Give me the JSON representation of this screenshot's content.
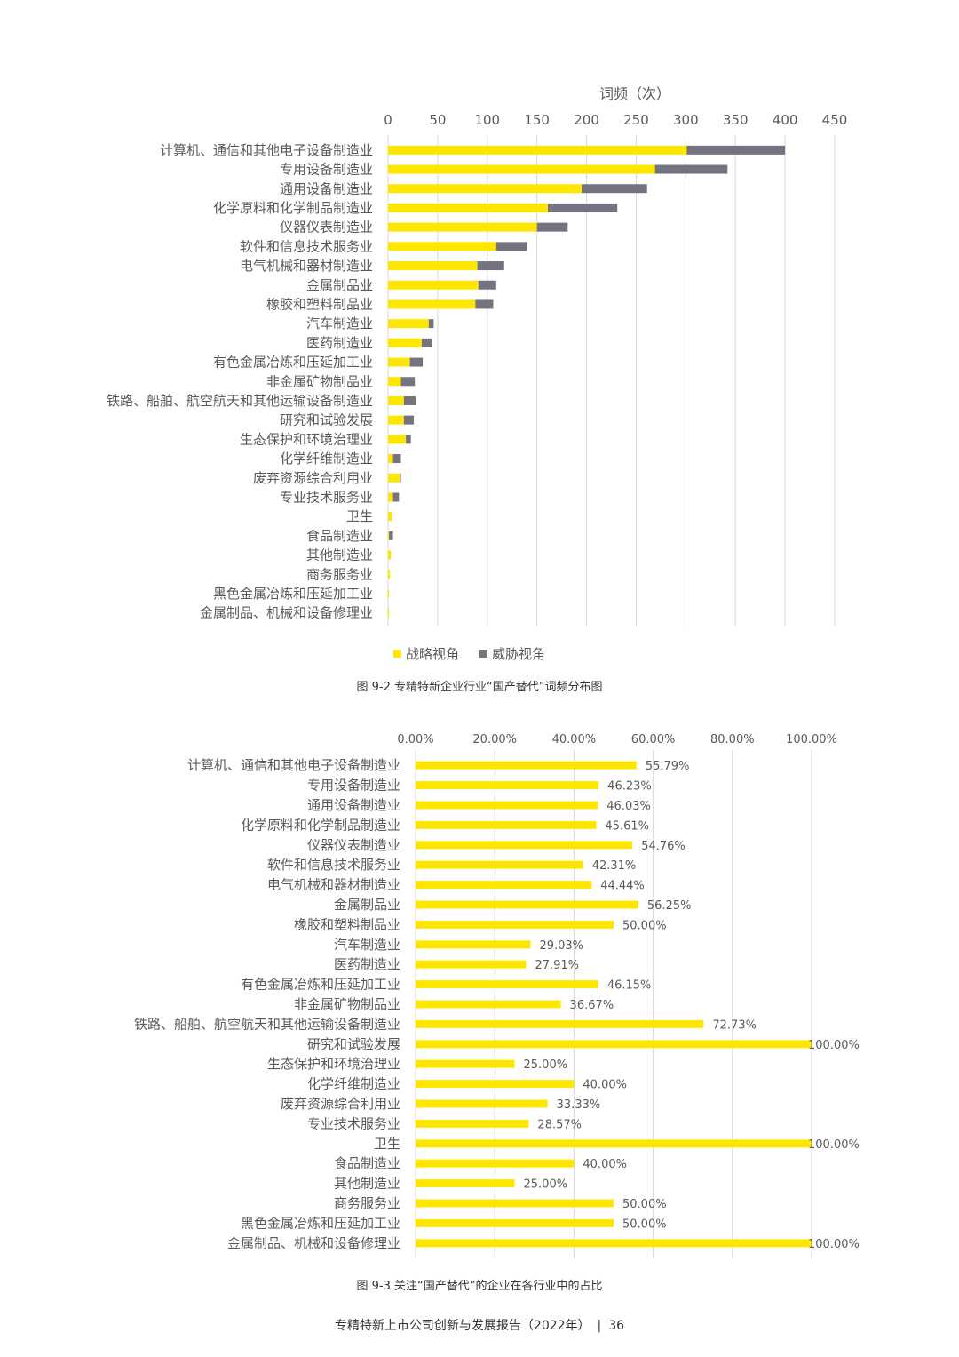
{
  "chart_data": [
    {
      "type": "bar",
      "orientation": "horizontal",
      "stacked": true,
      "x_axis_title": "词频（次）",
      "xlim": [
        0,
        450
      ],
      "x_ticks": [
        0,
        50,
        100,
        150,
        200,
        250,
        300,
        350,
        400,
        450
      ],
      "x_axis_position": "top",
      "grid": true,
      "legend_position": "bottom",
      "categories": [
        "计算机、通信和其他电子设备制造业",
        "专用设备制造业",
        "通用设备制造业",
        "化学原料和化学制品制造业",
        "仪器仪表制造业",
        "软件和信息技术服务业",
        "电气机械和器材制造业",
        "金属制品业",
        "橡胶和塑料制品业",
        "汽车制造业",
        "医药制造业",
        "有色金属冶炼和压延加工业",
        "非金属矿物制品业",
        "铁路、船舶、航空航天和其他运输设备制造业",
        "研究和试验发展",
        "生态保护和环境治理业",
        "化学纤维制造业",
        "废弃资源综合利用业",
        "专业技术服务业",
        "卫生",
        "食品制造业",
        "其他制造业",
        "商务服务业",
        "黑色金属冶炼和压延加工业",
        "金属制品、机械和设备修理业"
      ],
      "series": [
        {
          "name": "战略视角",
          "color": "#FFE600",
          "values": [
            301,
            269,
            195,
            161,
            150,
            109,
            90,
            91,
            88,
            41,
            34,
            22,
            13,
            16,
            16,
            18,
            5,
            12,
            5,
            4,
            1,
            3,
            2,
            1,
            1
          ]
        },
        {
          "name": "威胁视角",
          "color": "#747480",
          "values": [
            99,
            73,
            66,
            70,
            31,
            31,
            27,
            18,
            18,
            5,
            10,
            13,
            14,
            12,
            10,
            5,
            8,
            1,
            6,
            0,
            4,
            0,
            0,
            0,
            0
          ]
        }
      ],
      "caption": "图 9-2 专精特新企业行业“国产替代”词频分布图"
    },
    {
      "type": "bar",
      "orientation": "horizontal",
      "xlim": [
        0,
        100
      ],
      "x_ticks": [
        "0.00%",
        "20.00%",
        "40.00%",
        "60.00%",
        "80.00%",
        "100.00%"
      ],
      "x_axis_position": "top",
      "grid": true,
      "bar_color": "#FFE600",
      "categories": [
        "计算机、通信和其他电子设备制造业",
        "专用设备制造业",
        "通用设备制造业",
        "化学原料和化学制品制造业",
        "仪器仪表制造业",
        "软件和信息技术服务业",
        "电气机械和器材制造业",
        "金属制品业",
        "橡胶和塑料制品业",
        "汽车制造业",
        "医药制造业",
        "有色金属冶炼和压延加工业",
        "非金属矿物制品业",
        "铁路、船舶、航空航天和其他运输设备制造业",
        "研究和试验发展",
        "生态保护和环境治理业",
        "化学纤维制造业",
        "废弃资源综合利用业",
        "专业技术服务业",
        "卫生",
        "食品制造业",
        "其他制造业",
        "商务服务业",
        "黑色金属冶炼和压延加工业",
        "金属制品、机械和设备修理业"
      ],
      "values": [
        55.79,
        46.23,
        46.03,
        45.61,
        54.76,
        42.31,
        44.44,
        56.25,
        50.0,
        29.03,
        27.91,
        46.15,
        36.67,
        72.73,
        100.0,
        25.0,
        40.0,
        33.33,
        28.57,
        100.0,
        40.0,
        25.0,
        50.0,
        50.0,
        100.0
      ],
      "data_labels": [
        "55.79%",
        "46.23%",
        "46.03%",
        "45.61%",
        "54.76%",
        "42.31%",
        "44.44%",
        "56.25%",
        "50.00%",
        "29.03%",
        "27.91%",
        "46.15%",
        "36.67%",
        "72.73%",
        "100.00%",
        "25.00%",
        "40.00%",
        "33.33%",
        "28.57%",
        "100.00%",
        "40.00%",
        "25.00%",
        "50.00%",
        "50.00%",
        "100.00%"
      ],
      "caption": "图 9-3 关注“国产替代”的企业在各行业中的占比"
    }
  ],
  "footer": {
    "report_title": "专精特新上市公司创新与发展报告（2022年）",
    "separator": "|",
    "page_number": "36"
  }
}
